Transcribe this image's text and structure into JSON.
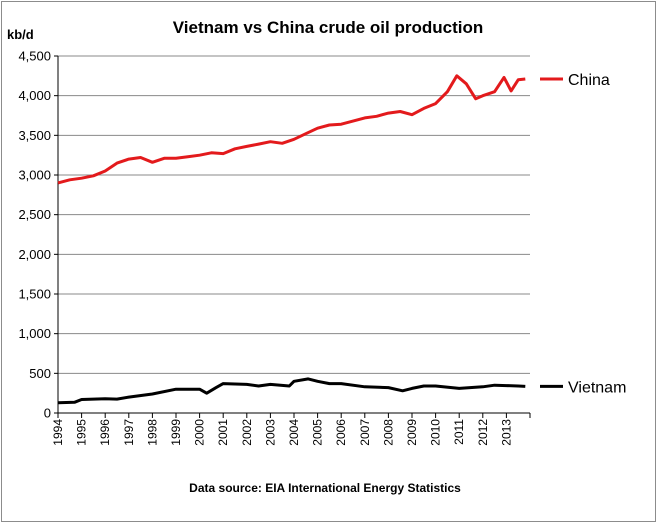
{
  "chart_data": {
    "type": "line",
    "title": "Vietnam vs China crude oil production",
    "ylabel": "kb/d",
    "xlabel": "",
    "ylim": [
      0,
      4500
    ],
    "yticks": [
      0,
      500,
      1000,
      1500,
      2000,
      2500,
      3000,
      3500,
      4000,
      4500
    ],
    "ytick_labels": [
      "0",
      "500",
      "1,000",
      "1,500",
      "2,000",
      "2,500",
      "3,000",
      "3,500",
      "4,000",
      "4,500"
    ],
    "xlim": [
      1994,
      2014
    ],
    "xtick_labels": [
      "1994",
      "1995",
      "1996",
      "1997",
      "1998",
      "1999",
      "2000",
      "2001",
      "2002",
      "2003",
      "2004",
      "2005",
      "2006",
      "2007",
      "2008",
      "2009",
      "2010",
      "2011",
      "2012",
      "2013"
    ],
    "grid": true,
    "legend": "right",
    "source": "Data source: EIA International Energy Statistics",
    "series": [
      {
        "name": "China",
        "color": "#e31a1c",
        "x": [
          1994.0,
          1994.5,
          1995.0,
          1995.5,
          1996.0,
          1996.5,
          1997.0,
          1997.5,
          1998.0,
          1998.5,
          1999.0,
          1999.5,
          2000.0,
          2000.5,
          2001.0,
          2001.5,
          2002.0,
          2002.5,
          2003.0,
          2003.5,
          2004.0,
          2004.5,
          2005.0,
          2005.5,
          2006.0,
          2006.5,
          2007.0,
          2007.5,
          2008.0,
          2008.5,
          2009.0,
          2009.5,
          2010.0,
          2010.5,
          2010.9,
          2011.3,
          2011.7,
          2012.0,
          2012.5,
          2012.9,
          2013.2,
          2013.5,
          2013.8
        ],
        "values": [
          2900,
          2940,
          2960,
          2990,
          3050,
          3150,
          3200,
          3220,
          3160,
          3210,
          3210,
          3230,
          3250,
          3280,
          3270,
          3330,
          3360,
          3390,
          3420,
          3400,
          3450,
          3520,
          3590,
          3630,
          3640,
          3680,
          3720,
          3740,
          3780,
          3800,
          3760,
          3840,
          3900,
          4050,
          4250,
          4150,
          3960,
          4000,
          4050,
          4230,
          4060,
          4200,
          4210
        ]
      },
      {
        "name": "Vietnam",
        "color": "#000000",
        "x": [
          1994.0,
          1994.7,
          1995.0,
          1996.0,
          1996.5,
          1997.0,
          1998.0,
          1999.0,
          2000.0,
          2000.3,
          2000.7,
          2001.0,
          2002.0,
          2002.5,
          2003.0,
          2003.8,
          2004.0,
          2004.6,
          2005.0,
          2005.5,
          2006.0,
          2007.0,
          2008.0,
          2008.6,
          2009.0,
          2009.5,
          2010.0,
          2011.0,
          2012.0,
          2012.5,
          2013.0,
          2013.5,
          2013.8
        ],
        "values": [
          130,
          135,
          170,
          180,
          175,
          200,
          240,
          300,
          300,
          250,
          320,
          370,
          360,
          340,
          360,
          340,
          400,
          430,
          400,
          370,
          370,
          330,
          320,
          280,
          310,
          340,
          340,
          310,
          330,
          350,
          345,
          340,
          335
        ]
      }
    ]
  }
}
